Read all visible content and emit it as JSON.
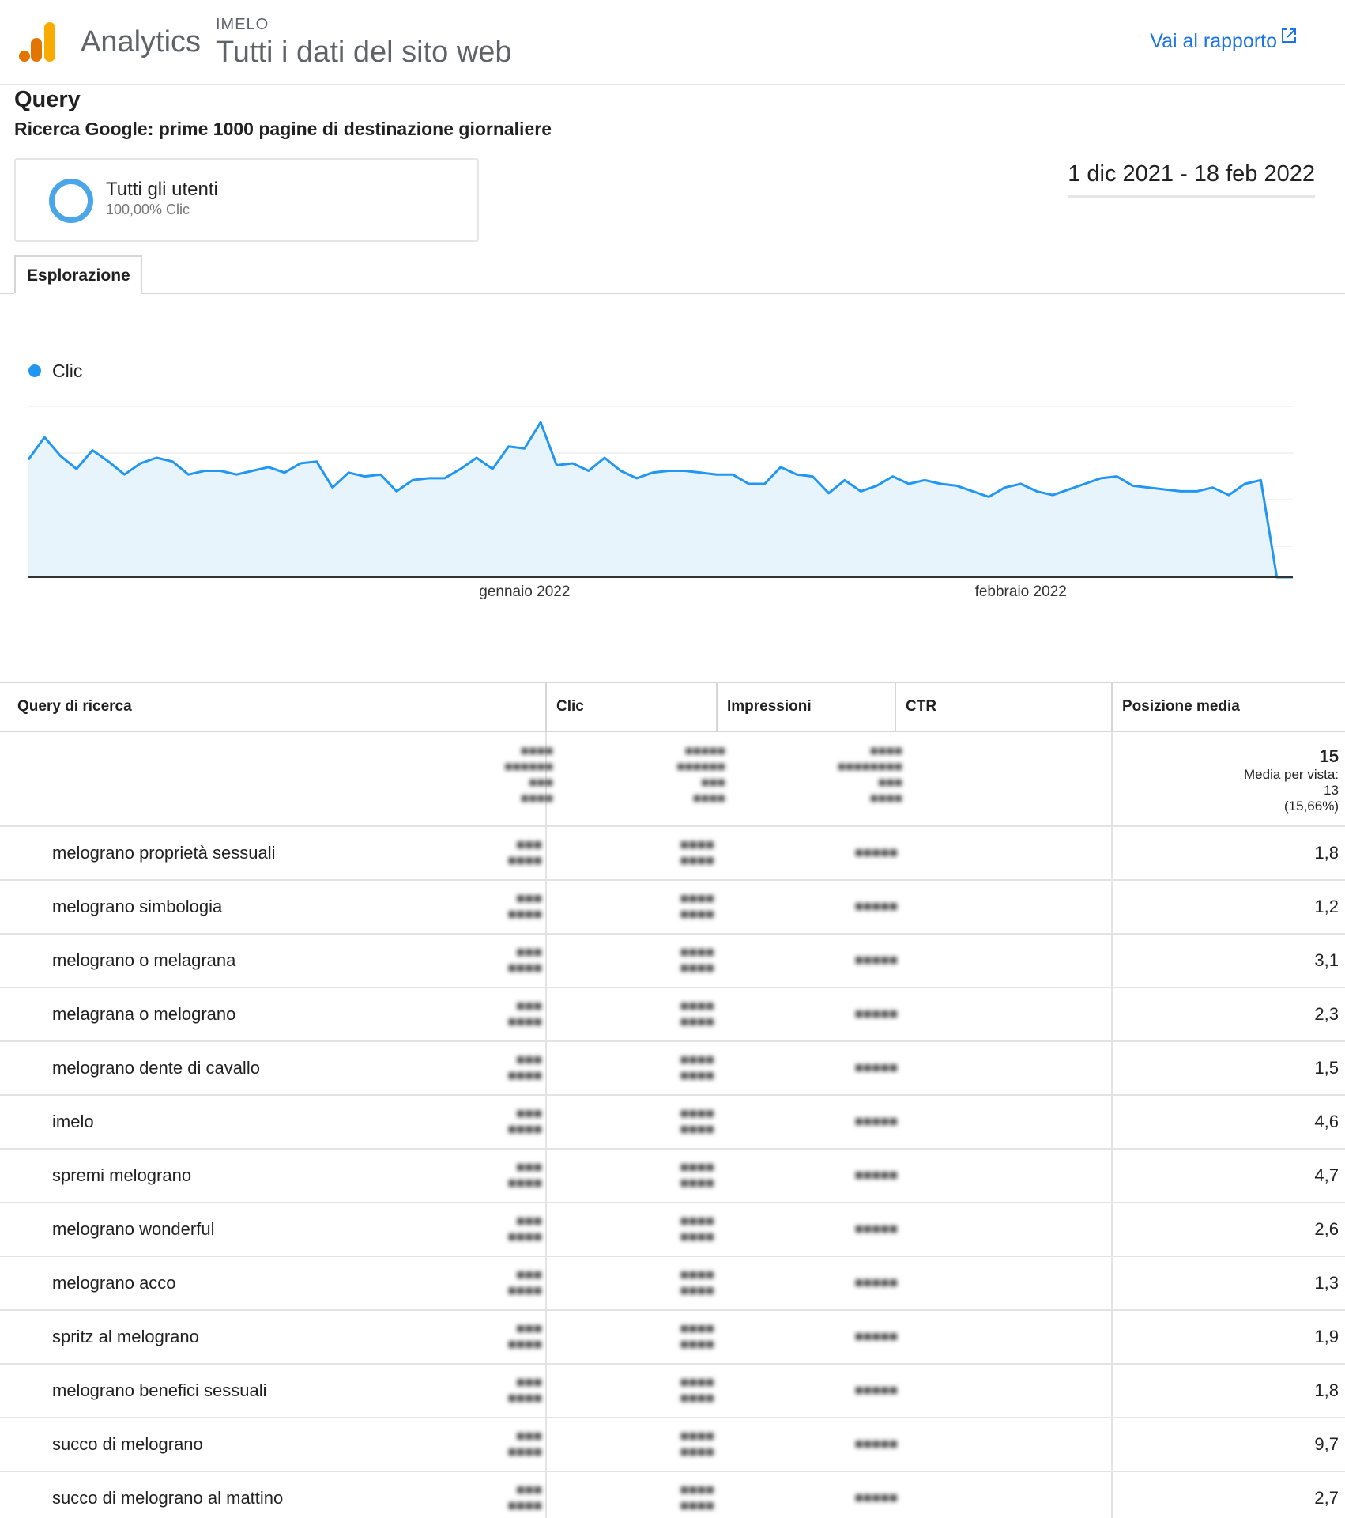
{
  "header": {
    "brand": "Analytics",
    "property": "IMELO",
    "view_title": "Tutti i dati del sito web",
    "report_link": "Vai al rapporto",
    "report_link_icon": "external-link-icon",
    "logo_icon": "analytics-logo-icon"
  },
  "report": {
    "title": "Query",
    "subtitle": "Ricerca Google: prime 1000 pagine di destinazione giornaliere"
  },
  "segment": {
    "name": "Tutti gli utenti",
    "metric": "100,00% Clic",
    "color": "#4aa6e8"
  },
  "date_range": "1 dic 2021 - 18 feb 2022",
  "tabs": [
    {
      "label": "Esplorazione",
      "active": true
    }
  ],
  "chart_data": {
    "type": "area",
    "legend": [
      "Clic"
    ],
    "series_color": "#2196f3",
    "fill_color": "#e8f4fc",
    "x_tick_labels": [
      "gennaio 2022",
      "febbraio 2022"
    ],
    "x_tick_dates": [
      "2022-01-01",
      "2022-02-01"
    ],
    "x_start": "2021-12-01",
    "x_end": "2022-02-18",
    "y_ticks_shown": false,
    "grid": true,
    "note": "Y values are relative (axis labels not shown); last two days drop to zero.",
    "values": [
      63,
      75,
      65,
      58,
      68,
      62,
      55,
      61,
      64,
      62,
      55,
      57,
      57,
      55,
      57,
      59,
      56,
      61,
      62,
      48,
      56,
      54,
      55,
      46,
      52,
      53,
      53,
      58,
      64,
      58,
      70,
      69,
      83,
      60,
      61,
      57,
      64,
      57,
      53,
      56,
      57,
      57,
      56,
      55,
      55,
      50,
      50,
      59,
      55,
      54,
      45,
      52,
      46,
      49,
      54,
      50,
      52,
      50,
      49,
      46,
      43,
      48,
      50,
      46,
      44,
      47,
      50,
      53,
      54,
      49,
      48,
      47,
      46,
      46,
      48,
      44,
      50,
      52,
      0,
      0
    ]
  },
  "table": {
    "columns": [
      "Query di ricerca",
      "Clic",
      "Impressioni",
      "CTR",
      "Posizione media"
    ],
    "summary": {
      "position_value": "15",
      "position_note": "Media per vista:",
      "position_view_avg": "13",
      "position_pct": "(15,66%)"
    },
    "rows": [
      {
        "query": "melograno proprietà sessuali",
        "position": "1,8"
      },
      {
        "query": "melograno simbologia",
        "position": "1,2"
      },
      {
        "query": "melograno o melagrana",
        "position": "3,1"
      },
      {
        "query": "melagrana o melograno",
        "position": "2,3"
      },
      {
        "query": "melograno dente di cavallo",
        "position": "1,5"
      },
      {
        "query": "imelo",
        "position": "4,6"
      },
      {
        "query": "spremi melograno",
        "position": "4,7"
      },
      {
        "query": "melograno wonderful",
        "position": "2,6"
      },
      {
        "query": "melograno acco",
        "position": "1,3"
      },
      {
        "query": "spritz al melograno",
        "position": "1,9"
      },
      {
        "query": "melograno benefici sessuali",
        "position": "1,8"
      },
      {
        "query": "succo di melograno",
        "position": "9,7"
      },
      {
        "query": "succo di melograno al mattino",
        "position": "2,7"
      }
    ]
  }
}
